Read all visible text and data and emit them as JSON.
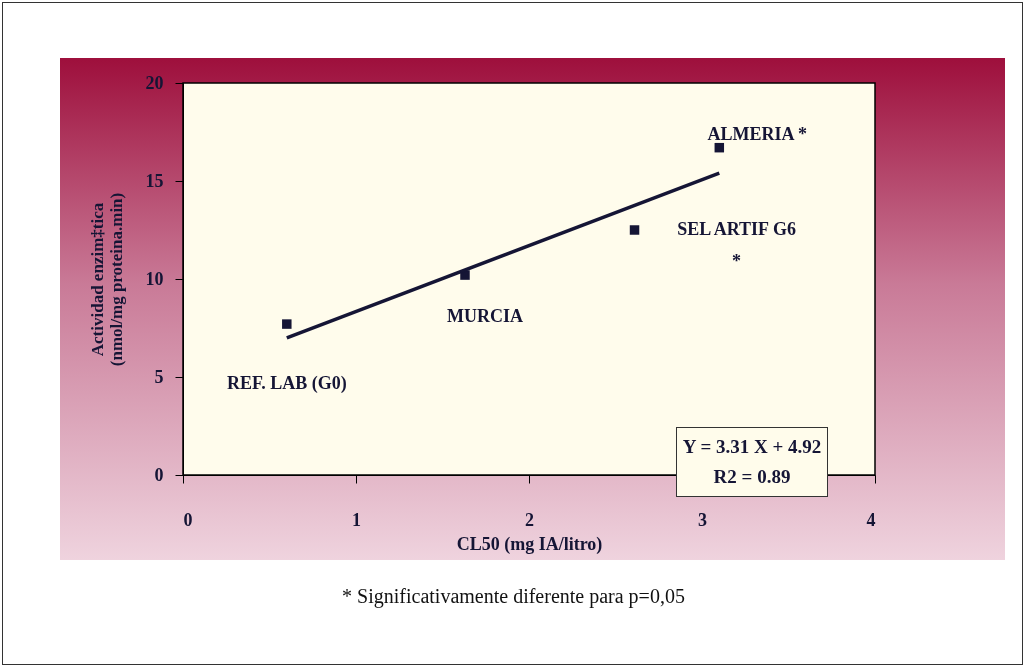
{
  "chart_data": {
    "type": "scatter",
    "xlabel": "CL50 (mg IA/litro)",
    "ylabel": "Actividad enzim‡tica\n(nmol/mg proteina.min)",
    "x": [
      0.6,
      1.63,
      2.61,
      3.1
    ],
    "series": [
      {
        "color": "#151535",
        "values": [
          7.7,
          10.2,
          12.5,
          16.7
        ],
        "marker": "square"
      },
      {
        "type": "line",
        "color": "#151535",
        "x": [
          0.6,
          3.1
        ],
        "values": [
          7.0,
          15.4
        ],
        "line_style": "solid"
      }
    ],
    "xlim": [
      0,
      4
    ],
    "xticks": [
      0,
      1,
      2,
      3,
      4
    ],
    "ylim": [
      0,
      20
    ],
    "yticks": [
      0,
      5,
      10,
      15,
      20
    ],
    "grid": false,
    "annotations": [
      {
        "text": "REF. LAB (G0)",
        "x": 0.6,
        "y": 7.7
      },
      {
        "text": "MURCIA",
        "x": 1.63,
        "y": 10.2
      },
      {
        "text": "SEL ARTIF G6\n*",
        "x": 2.61,
        "y": 12.5
      },
      {
        "text": "ALMERIA *",
        "x": 3.1,
        "y": 16.7
      },
      "Y = 3.31 X + 4.92",
      "R2 = 0.89",
      "* Significativamente diferente para p=0,05"
    ]
  }
}
